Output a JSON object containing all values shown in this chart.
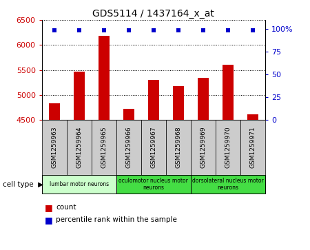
{
  "title": "GDS5114 / 1437164_x_at",
  "samples": [
    "GSM1259963",
    "GSM1259964",
    "GSM1259965",
    "GSM1259966",
    "GSM1259967",
    "GSM1259968",
    "GSM1259969",
    "GSM1259970",
    "GSM1259971"
  ],
  "counts": [
    4840,
    5470,
    6180,
    4730,
    5300,
    5180,
    5350,
    5600,
    4610
  ],
  "percentiles": [
    99,
    99,
    99,
    99,
    99,
    99,
    99,
    99,
    99
  ],
  "ylim": [
    4500,
    6500
  ],
  "yticks": [
    4500,
    5000,
    5500,
    6000,
    6500
  ],
  "y2ticks": [
    0,
    25,
    50,
    75,
    100
  ],
  "y2labels": [
    "0",
    "25",
    "50",
    "75",
    "100%"
  ],
  "bar_color": "#cc0000",
  "dot_color": "#0000cc",
  "cell_types": [
    {
      "label": "lumbar motor neurons",
      "start": 0,
      "end": 3,
      "color": "#ccffcc"
    },
    {
      "label": "oculomotor nucleus motor\nneurons",
      "start": 3,
      "end": 6,
      "color": "#44dd44"
    },
    {
      "label": "dorsolateral nucleus motor\nneurons",
      "start": 6,
      "end": 9,
      "color": "#44dd44"
    }
  ],
  "cell_type_label": "cell type",
  "legend_count": "count",
  "legend_percentile": "percentile rank within the sample",
  "bar_width": 0.45,
  "label_area_color": "#cccccc",
  "label_area_color_alt": "#bbbbbb"
}
